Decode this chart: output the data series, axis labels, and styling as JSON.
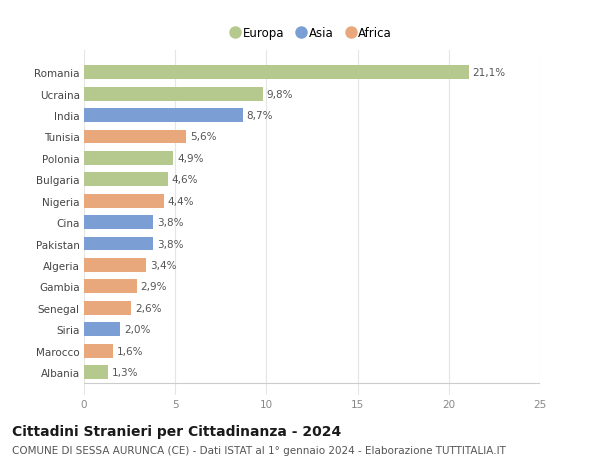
{
  "categories": [
    "Romania",
    "Ucraina",
    "India",
    "Tunisia",
    "Polonia",
    "Bulgaria",
    "Nigeria",
    "Cina",
    "Pakistan",
    "Algeria",
    "Gambia",
    "Senegal",
    "Siria",
    "Marocco",
    "Albania"
  ],
  "values": [
    21.1,
    9.8,
    8.7,
    5.6,
    4.9,
    4.6,
    4.4,
    3.8,
    3.8,
    3.4,
    2.9,
    2.6,
    2.0,
    1.6,
    1.3
  ],
  "labels": [
    "21,1%",
    "9,8%",
    "8,7%",
    "5,6%",
    "4,9%",
    "4,6%",
    "4,4%",
    "3,8%",
    "3,8%",
    "3,4%",
    "2,9%",
    "2,6%",
    "2,0%",
    "1,6%",
    "1,3%"
  ],
  "continents": [
    "Europa",
    "Europa",
    "Asia",
    "Africa",
    "Europa",
    "Europa",
    "Africa",
    "Asia",
    "Asia",
    "Africa",
    "Africa",
    "Africa",
    "Asia",
    "Africa",
    "Europa"
  ],
  "colors": {
    "Europa": "#b5c98e",
    "Asia": "#7b9fd4",
    "Africa": "#e8a87c"
  },
  "xlim": [
    0,
    25
  ],
  "xticks": [
    0,
    5,
    10,
    15,
    20,
    25
  ],
  "title": "Cittadini Stranieri per Cittadinanza - 2024",
  "subtitle": "COMUNE DI SESSA AURUNCA (CE) - Dati ISTAT al 1° gennaio 2024 - Elaborazione TUTTITALIA.IT",
  "title_fontsize": 10,
  "subtitle_fontsize": 7.5,
  "background_color": "#ffffff",
  "grid_color": "#e5e5e5",
  "bar_height": 0.65,
  "label_fontsize": 7.5,
  "tick_fontsize": 7.5,
  "legend_entries": [
    "Europa",
    "Asia",
    "Africa"
  ],
  "legend_colors": {
    "Europa": "#b5c98e",
    "Asia": "#7b9fd4",
    "Africa": "#e8a87c"
  }
}
